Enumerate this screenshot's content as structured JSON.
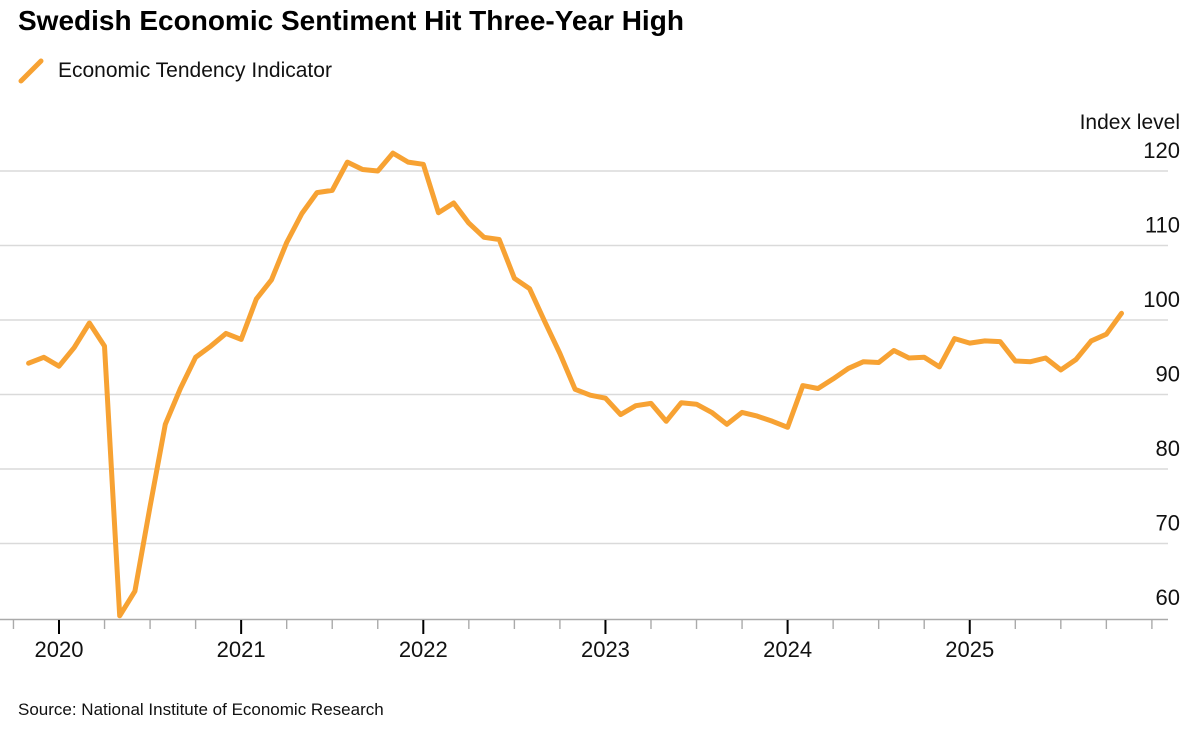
{
  "title": "Swedish Economic Sentiment Hit Three-Year High",
  "legend": {
    "label": "Economic Tendency Indicator"
  },
  "y_axis_title": "Index level",
  "source": "Source: National Institute of Economic Research",
  "colors": {
    "line": "#F7A233",
    "gridline": "#DADADA",
    "axis": "#AAAAAA",
    "tick_major": "#000000",
    "text": "#111111",
    "background": "#FFFFFF"
  },
  "chart_data": {
    "type": "line",
    "title": "Swedish Economic Sentiment Hit Three-Year High",
    "series_name": "Economic Tendency Indicator",
    "ylabel": "Index level",
    "ylim": [
      56,
      124
    ],
    "y_ticks": [
      60,
      70,
      80,
      90,
      100,
      110,
      120
    ],
    "x_tick_years": [
      "2020",
      "2021",
      "2022",
      "2023",
      "2024",
      "2025"
    ],
    "frequency": "monthly",
    "grid": "horizontal",
    "legend_position": "top-left",
    "x": [
      "2019-11",
      "2019-12",
      "2020-01",
      "2020-02",
      "2020-03",
      "2020-04",
      "2020-05",
      "2020-06",
      "2020-07",
      "2020-08",
      "2020-09",
      "2020-10",
      "2020-11",
      "2020-12",
      "2021-01",
      "2021-02",
      "2021-03",
      "2021-04",
      "2021-05",
      "2021-06",
      "2021-07",
      "2021-08",
      "2021-09",
      "2021-10",
      "2021-11",
      "2021-12",
      "2022-01",
      "2022-02",
      "2022-03",
      "2022-04",
      "2022-05",
      "2022-06",
      "2022-07",
      "2022-08",
      "2022-09",
      "2022-10",
      "2022-11",
      "2022-12",
      "2023-01",
      "2023-02",
      "2023-03",
      "2023-04",
      "2023-05",
      "2023-06",
      "2023-07",
      "2023-08",
      "2023-09",
      "2023-10",
      "2023-11",
      "2023-12",
      "2024-01",
      "2024-02",
      "2024-03",
      "2024-04",
      "2024-05",
      "2024-06",
      "2024-07",
      "2024-08",
      "2024-09",
      "2024-10",
      "2024-11",
      "2024-12",
      "2025-01",
      "2025-02",
      "2025-03",
      "2025-04",
      "2025-05",
      "2025-06",
      "2025-07",
      "2025-08",
      "2025-09",
      "2025-10",
      "2025-11"
    ],
    "values": [
      94.2,
      95.0,
      93.8,
      96.3,
      99.6,
      96.5,
      60.3,
      63.6,
      75.0,
      86.0,
      90.8,
      95.0,
      96.5,
      98.2,
      97.4,
      102.8,
      105.4,
      110.4,
      114.3,
      117.1,
      117.4,
      121.2,
      120.2,
      120.0,
      122.4,
      121.2,
      120.9,
      114.4,
      115.7,
      113.0,
      111.1,
      110.8,
      105.6,
      104.2,
      99.8,
      95.5,
      90.7,
      89.9,
      89.5,
      87.3,
      88.5,
      88.8,
      86.4,
      88.9,
      88.7,
      87.6,
      86.0,
      87.6,
      87.1,
      86.4,
      85.6,
      91.2,
      90.8,
      92.1,
      93.5,
      94.4,
      94.3,
      95.9,
      94.9,
      95.0,
      93.7,
      97.5,
      96.9,
      97.2,
      97.1,
      94.5,
      94.4,
      94.9,
      93.3,
      94.7,
      97.2,
      98.1,
      100.9
    ]
  }
}
